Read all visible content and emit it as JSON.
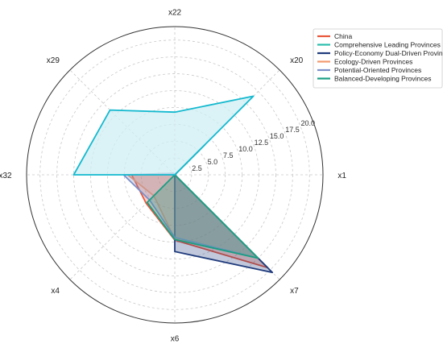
{
  "chart_data": {
    "type": "radar",
    "axes": [
      "x1",
      "x20",
      "x22",
      "x29",
      "x32",
      "x4",
      "x6",
      "x7"
    ],
    "axis_angles_deg": [
      0,
      45,
      90,
      135,
      180,
      225,
      270,
      315
    ],
    "r_ticks": [
      2.5,
      5.0,
      7.5,
      10.0,
      12.5,
      15.0,
      17.5,
      20.0
    ],
    "r_tick_labels": [
      "2.5",
      "5.0",
      "7.5",
      "10.0",
      "12.5",
      "15.0",
      "17.5",
      "20.0"
    ],
    "r_max": 22,
    "grid": true,
    "legend_position": "top-right",
    "series": [
      {
        "name": "China",
        "color": "#e8563a",
        "values": [
          0,
          0.3,
          0,
          0.3,
          6.4,
          6.0,
          9.7,
          19.5
        ]
      },
      {
        "name": "Comprehensive Leading Provinces",
        "color": "#2bbdad",
        "values": [
          0,
          6.2,
          0,
          0,
          0,
          0,
          0,
          19.5
        ]
      },
      {
        "name": "Policy-Economy Dual-Driven Provinces",
        "color": "#1f3b7c",
        "values": [
          0,
          5.0,
          0,
          0,
          0,
          0,
          11.4,
          20.5
        ]
      },
      {
        "name": "Ecology-Driven Provinces",
        "color": "#f29a6e",
        "values": [
          0,
          0.3,
          0,
          0.3,
          7.0,
          4.4,
          9.5,
          17.5
        ]
      },
      {
        "name": "Potential-Oriented Provinces",
        "color": "#7b8fc9",
        "values": [
          0,
          0.3,
          0,
          0.3,
          7.6,
          5.3,
          9.3,
          17.5
        ]
      },
      {
        "name": "Balanced-Developing Provinces",
        "color": "#1a9e83",
        "values": [
          0,
          6.3,
          0,
          0,
          0,
          5.8,
          9.6,
          17.5
        ]
      },
      {
        "name": "",
        "color": "#13b9cf",
        "fill": "#cfeef3",
        "values": [
          0,
          16.5,
          9.3,
          13.6,
          15.0,
          0,
          0,
          0
        ]
      }
    ]
  }
}
